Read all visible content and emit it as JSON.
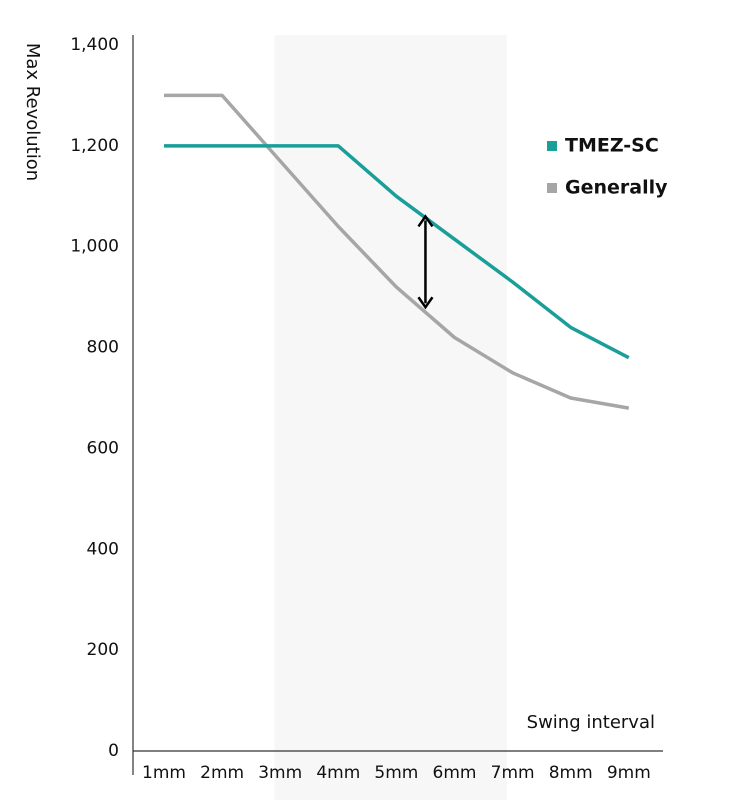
{
  "chart_data": {
    "type": "line",
    "categories": [
      "1mm",
      "2mm",
      "3mm",
      "4mm",
      "5mm",
      "6mm",
      "7mm",
      "8mm",
      "9mm"
    ],
    "series": [
      {
        "name": "TMEZ-SC",
        "color": "#1a9e9a",
        "values": [
          1200,
          1200,
          1200,
          1200,
          1100,
          1015,
          930,
          840,
          780
        ]
      },
      {
        "name": "Generally",
        "color": "#a6a6a6",
        "values": [
          1300,
          1300,
          1170,
          1040,
          920,
          820,
          750,
          700,
          680
        ]
      }
    ],
    "xlabel": "Swing interval",
    "ylabel": "Max Revolution",
    "ylim": [
      0,
      1400
    ],
    "yticks": [
      0,
      200,
      400,
      600,
      800,
      1000,
      1200,
      1400
    ],
    "ytick_labels": [
      "0",
      "200",
      "400",
      "600",
      "800",
      "1,000",
      "1,200",
      "1,400"
    ],
    "highlight_range": [
      "3mm",
      "7mm"
    ],
    "highlight_color": "#f7f7f7",
    "difference_arrow": {
      "x": "5.5mm",
      "from": 1060,
      "to": 880
    },
    "legend_position": "right",
    "grid": false
  }
}
